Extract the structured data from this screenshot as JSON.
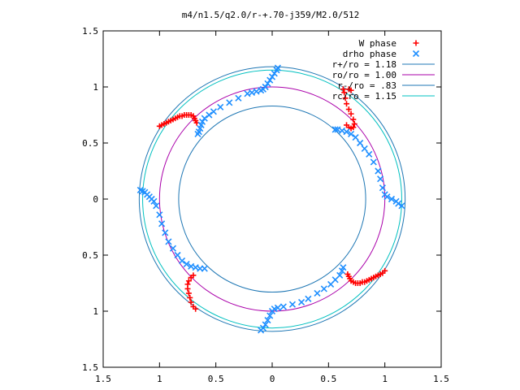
{
  "chart_data": {
    "type": "scatter",
    "title": "m4/n1.5/q2.0/r-+.70-j359/M2.0/512",
    "xlim": [
      -1.5,
      1.5
    ],
    "ylim": [
      -1.5,
      1.5
    ],
    "x_ticks": [
      -1.5,
      -1,
      -0.5,
      0,
      0.5,
      1,
      1.5
    ],
    "x_tick_labels": [
      "1.5",
      "1",
      "0.5",
      "0",
      "0.5",
      "1",
      "1.5"
    ],
    "y_ticks": [
      1.5,
      1,
      0.5,
      0,
      -0.5,
      -1,
      -1.5
    ],
    "y_tick_labels": [
      "1.5",
      "1",
      "0.5",
      "0",
      "0.5",
      "1",
      "1.5"
    ],
    "grid": false,
    "legend_position": "top-right",
    "circles": [
      {
        "name": "r+/ro = 1.18",
        "radius": 1.18,
        "color": "#1f77b4"
      },
      {
        "name": "ro/ro = 1.00",
        "radius": 1.0,
        "color": "#aa00aa"
      },
      {
        "name": "r-/ro = .83",
        "radius": 0.83,
        "color": "#1f77b4"
      },
      {
        "name": "rc/ro = 1.15",
        "radius": 1.15,
        "color": "#00c0c0"
      }
    ],
    "series": [
      {
        "name": "W phase",
        "marker": "plus",
        "color": "#ff0000",
        "points": [
          [
            -1.0,
            0.65
          ],
          [
            -0.98,
            0.66
          ],
          [
            -0.96,
            0.67
          ],
          [
            -0.94,
            0.68
          ],
          [
            -0.92,
            0.69
          ],
          [
            -0.9,
            0.7
          ],
          [
            -0.88,
            0.71
          ],
          [
            -0.86,
            0.72
          ],
          [
            -0.84,
            0.73
          ],
          [
            -0.82,
            0.74
          ],
          [
            -0.8,
            0.74
          ],
          [
            -0.78,
            0.75
          ],
          [
            -0.76,
            0.75
          ],
          [
            -0.74,
            0.75
          ],
          [
            -0.72,
            0.75
          ],
          [
            -0.7,
            0.74
          ],
          [
            -0.69,
            0.72
          ],
          [
            -0.68,
            0.7
          ],
          [
            -0.67,
            0.68
          ],
          [
            0.66,
            0.66
          ],
          [
            0.68,
            0.64
          ],
          [
            0.7,
            0.63
          ],
          [
            0.72,
            0.64
          ],
          [
            0.73,
            0.67
          ],
          [
            0.72,
            0.71
          ],
          [
            0.7,
            0.76
          ],
          [
            0.68,
            0.8
          ],
          [
            0.66,
            0.85
          ],
          [
            0.65,
            0.9
          ],
          [
            0.64,
            0.95
          ],
          [
            0.63,
            0.98
          ],
          [
            0.68,
            0.98
          ],
          [
            0.7,
            0.97
          ],
          [
            1.0,
            -0.64
          ],
          [
            0.98,
            -0.66
          ],
          [
            0.96,
            -0.67
          ],
          [
            0.94,
            -0.68
          ],
          [
            0.92,
            -0.69
          ],
          [
            0.9,
            -0.7
          ],
          [
            0.88,
            -0.71
          ],
          [
            0.86,
            -0.72
          ],
          [
            0.84,
            -0.73
          ],
          [
            0.82,
            -0.74
          ],
          [
            0.8,
            -0.74
          ],
          [
            0.78,
            -0.75
          ],
          [
            0.76,
            -0.75
          ],
          [
            0.74,
            -0.75
          ],
          [
            0.72,
            -0.74
          ],
          [
            0.7,
            -0.73
          ],
          [
            0.69,
            -0.71
          ],
          [
            0.68,
            -0.69
          ],
          [
            0.67,
            -0.67
          ],
          [
            -0.7,
            -0.68
          ],
          [
            -0.72,
            -0.7
          ],
          [
            -0.74,
            -0.73
          ],
          [
            -0.75,
            -0.76
          ],
          [
            -0.75,
            -0.8
          ],
          [
            -0.74,
            -0.84
          ],
          [
            -0.73,
            -0.88
          ],
          [
            -0.72,
            -0.92
          ],
          [
            -0.7,
            -0.96
          ],
          [
            -0.68,
            -0.98
          ]
        ]
      },
      {
        "name": "drho phase",
        "marker": "cross",
        "color": "#1f8fff",
        "points": [
          [
            0.05,
            1.17
          ],
          [
            0.04,
            1.15
          ],
          [
            0.02,
            1.12
          ],
          [
            0.0,
            1.09
          ],
          [
            -0.02,
            1.06
          ],
          [
            -0.04,
            1.03
          ],
          [
            -0.06,
            1.0
          ],
          [
            -0.08,
            0.98
          ],
          [
            -0.1,
            0.97
          ],
          [
            -0.14,
            0.96
          ],
          [
            -0.18,
            0.95
          ],
          [
            -0.22,
            0.94
          ],
          [
            -0.3,
            0.9
          ],
          [
            -0.38,
            0.86
          ],
          [
            -0.46,
            0.82
          ],
          [
            -0.52,
            0.78
          ],
          [
            -0.56,
            0.75
          ],
          [
            -0.6,
            0.72
          ],
          [
            -0.62,
            0.69
          ],
          [
            -0.63,
            0.66
          ],
          [
            -0.64,
            0.63
          ],
          [
            -0.65,
            0.6
          ],
          [
            -0.66,
            0.58
          ],
          [
            -1.17,
            0.08
          ],
          [
            -1.15,
            0.07
          ],
          [
            -1.13,
            0.06
          ],
          [
            -1.11,
            0.04
          ],
          [
            -1.09,
            0.02
          ],
          [
            -1.07,
            0.0
          ],
          [
            -1.05,
            -0.02
          ],
          [
            -1.03,
            -0.06
          ],
          [
            -1.0,
            -0.14
          ],
          [
            -0.98,
            -0.22
          ],
          [
            -0.95,
            -0.3
          ],
          [
            -0.92,
            -0.38
          ],
          [
            -0.88,
            -0.44
          ],
          [
            -0.84,
            -0.5
          ],
          [
            -0.8,
            -0.55
          ],
          [
            -0.76,
            -0.58
          ],
          [
            -0.72,
            -0.6
          ],
          [
            -0.68,
            -0.61
          ],
          [
            -0.64,
            -0.62
          ],
          [
            -0.6,
            -0.62
          ],
          [
            -0.1,
            -1.17
          ],
          [
            -0.08,
            -1.15
          ],
          [
            -0.06,
            -1.12
          ],
          [
            -0.04,
            -1.08
          ],
          [
            -0.02,
            -1.04
          ],
          [
            0.0,
            -1.0
          ],
          [
            0.02,
            -0.98
          ],
          [
            0.05,
            -0.97
          ],
          [
            0.1,
            -0.96
          ],
          [
            0.18,
            -0.94
          ],
          [
            0.26,
            -0.92
          ],
          [
            0.32,
            -0.89
          ],
          [
            0.4,
            -0.84
          ],
          [
            0.46,
            -0.8
          ],
          [
            0.52,
            -0.76
          ],
          [
            0.56,
            -0.72
          ],
          [
            0.6,
            -0.68
          ],
          [
            0.62,
            -0.64
          ],
          [
            0.63,
            -0.61
          ],
          [
            0.56,
            0.62
          ],
          [
            0.58,
            0.62
          ],
          [
            0.62,
            0.61
          ],
          [
            0.66,
            0.6
          ],
          [
            0.7,
            0.58
          ],
          [
            0.74,
            0.55
          ],
          [
            0.78,
            0.5
          ],
          [
            0.82,
            0.45
          ],
          [
            0.86,
            0.4
          ],
          [
            0.9,
            0.33
          ],
          [
            0.94,
            0.25
          ],
          [
            0.96,
            0.18
          ],
          [
            0.98,
            0.1
          ],
          [
            1.0,
            0.04
          ],
          [
            1.02,
            0.02
          ],
          [
            1.06,
            0.0
          ],
          [
            1.1,
            -0.02
          ],
          [
            1.12,
            -0.04
          ],
          [
            1.15,
            -0.06
          ]
        ]
      }
    ]
  }
}
